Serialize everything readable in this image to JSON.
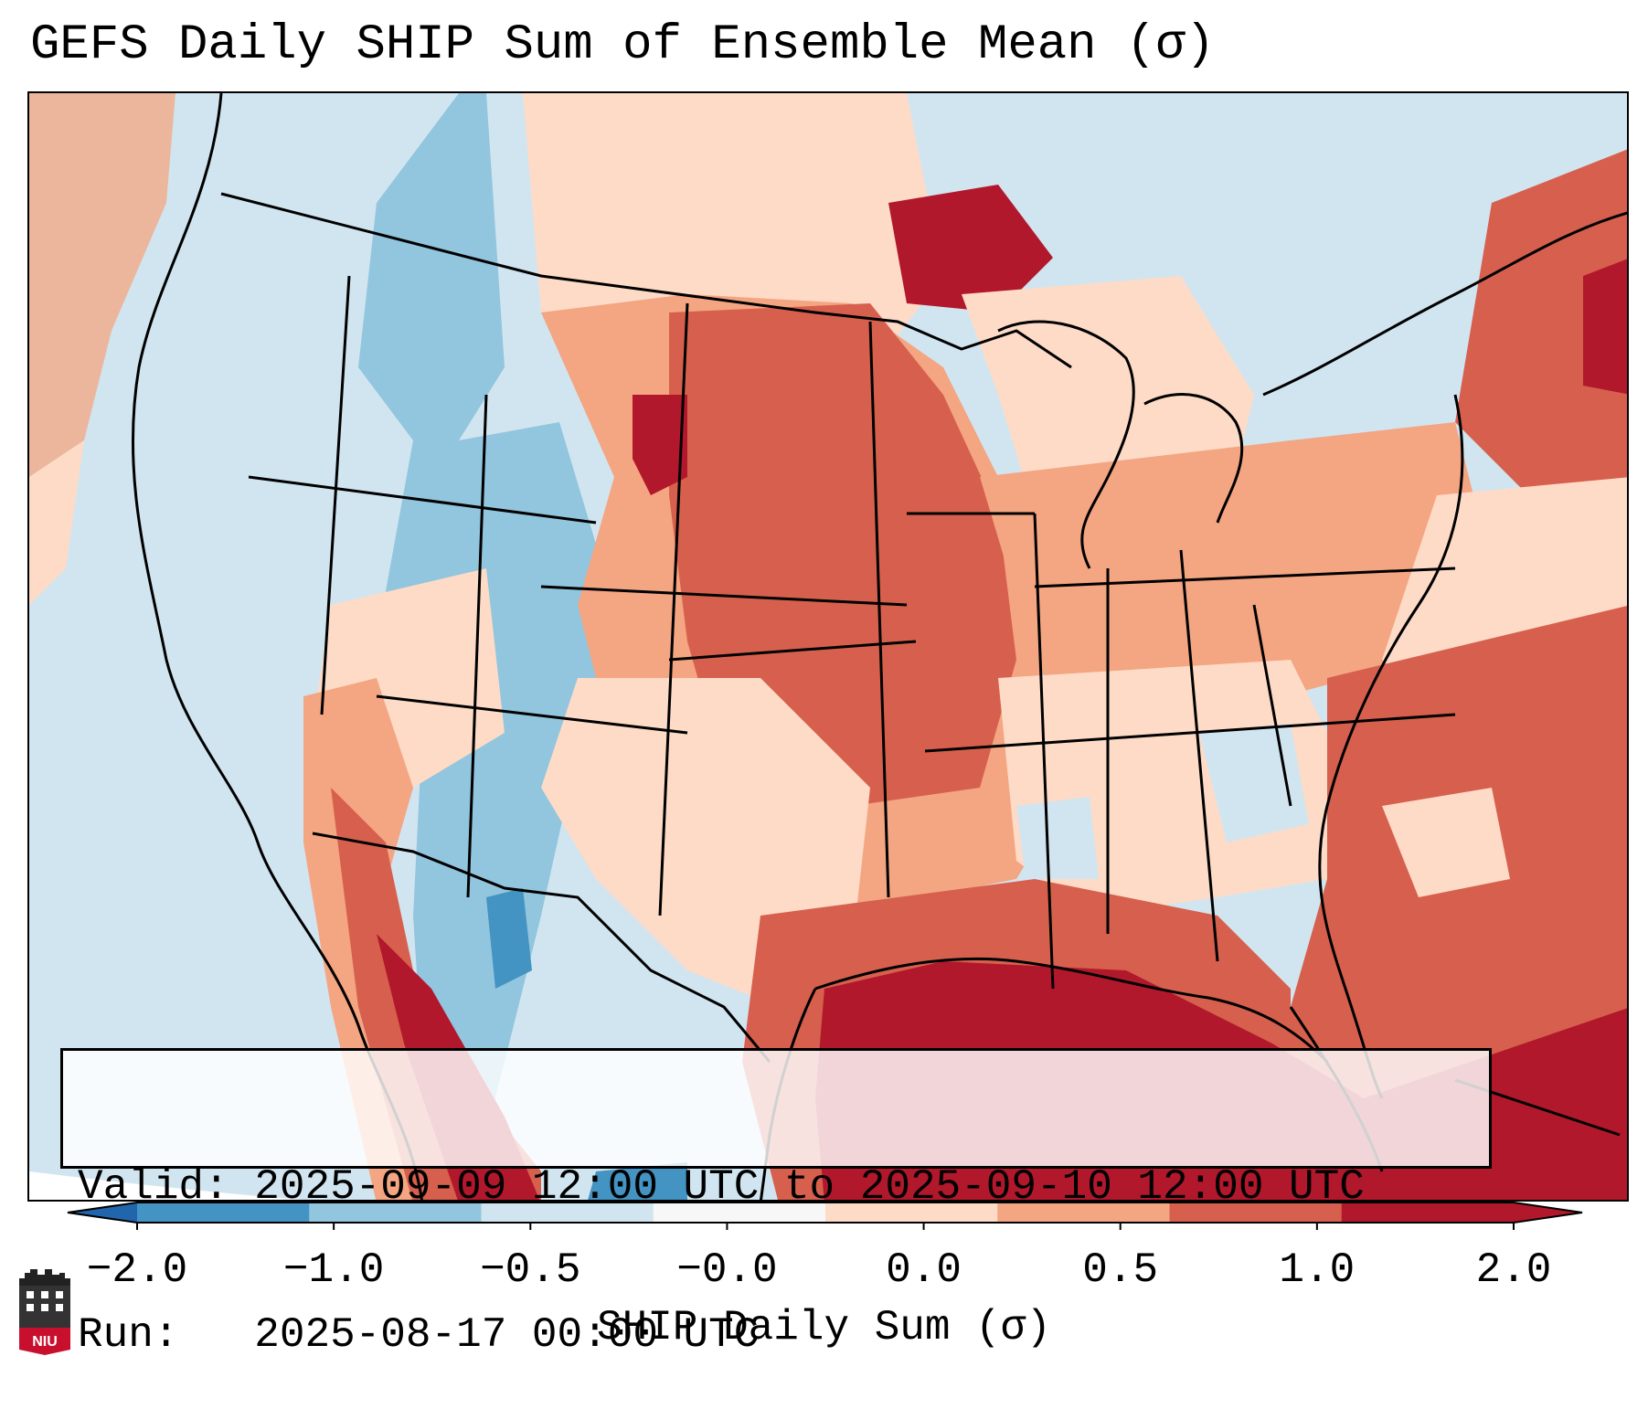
{
  "title": "GEFS Daily SHIP Sum of Ensemble Mean (σ)",
  "info": {
    "valid_label": "Valid:",
    "valid_value": "2025-09-09 12:00 UTC to 2025-09-10 12:00 UTC",
    "run_label": "Run:",
    "run_value": "2025-08-17 00:00 UTC"
  },
  "colorbar": {
    "label": "SHIP Daily Sum (σ)",
    "ticks": [
      "−2.0",
      "−1.0",
      "−0.5",
      "−0.0",
      "0.0",
      "0.5",
      "1.0",
      "2.0"
    ],
    "colors": [
      "#4393c3",
      "#92c5de",
      "#d1e5f0",
      "#f7f7f7",
      "#fddbc7",
      "#f4a582",
      "#d6604d",
      "#b2182b"
    ],
    "under_color": "#2166ac",
    "over_color": "#b2182b"
  },
  "logo": {
    "text": "NIU",
    "color": "#c8102e"
  },
  "regions": {
    "northwest": "light-blue",
    "rockies": "mid-blue",
    "plains_midwest": "dark-red",
    "gulf_of_mexico": "deepest-red",
    "atlantic": "red"
  }
}
